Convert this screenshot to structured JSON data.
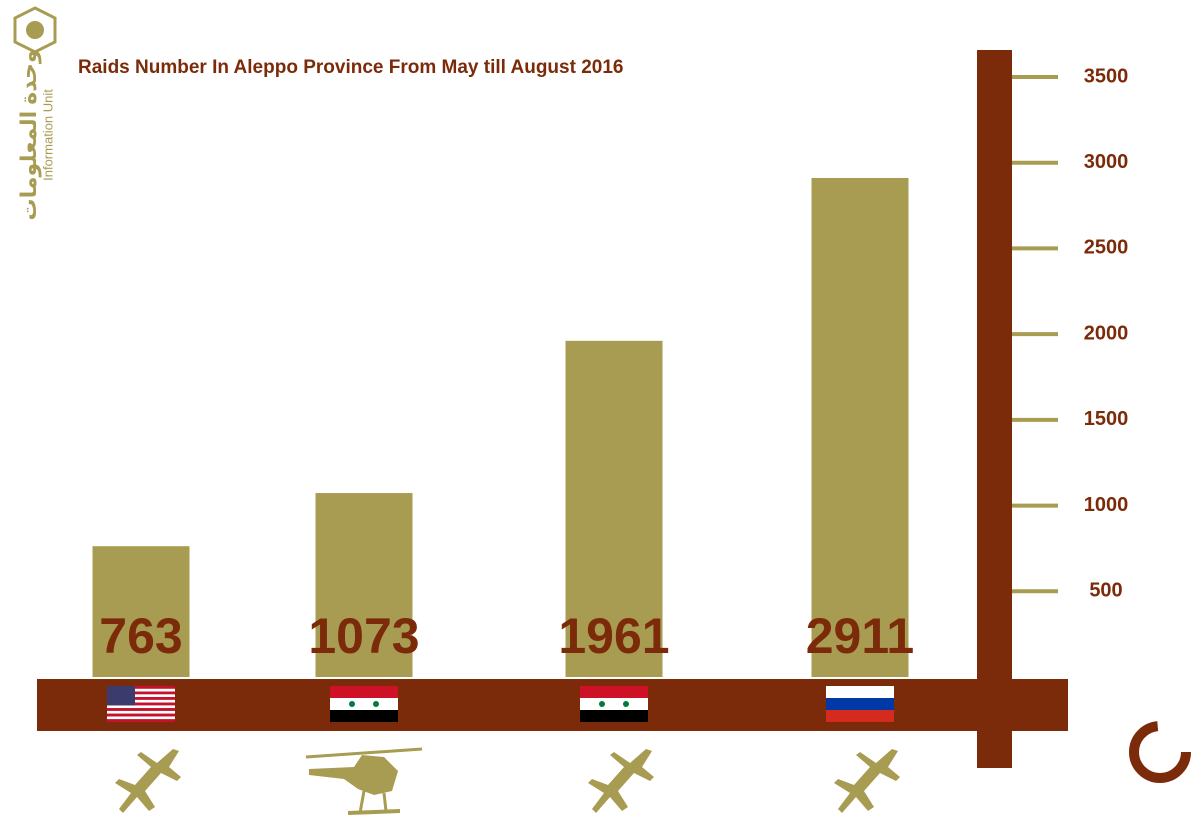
{
  "chart_data": {
    "type": "bar",
    "title": "Raids Number In Aleppo Province From May till August 2016",
    "logo": {
      "arabic": "وحدة المعلومات",
      "english": "Information Unit"
    },
    "categories": [
      null,
      null,
      null,
      null
    ],
    "values": [
      763,
      1073,
      1961,
      2911
    ],
    "color": "#a89c52",
    "ylim": [
      0,
      3500
    ],
    "yticks": [
      500,
      1000,
      1500,
      2000,
      2500,
      3000,
      3500
    ],
    "tick_color": "#a89c52",
    "axis_color": "#7b2b09"
  }
}
